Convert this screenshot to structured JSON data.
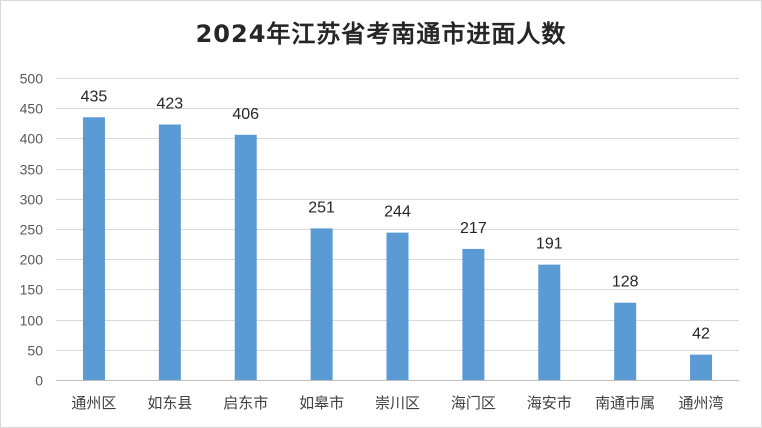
{
  "chart_data": {
    "type": "bar",
    "title": "2024年江苏省考南通市进面人数",
    "xlabel": "",
    "ylabel": "",
    "categories": [
      "通州区",
      "如东县",
      "启东市",
      "如皋市",
      "崇川区",
      "海门区",
      "海安市",
      "南通市属",
      "通州湾"
    ],
    "values": [
      435,
      423,
      406,
      251,
      244,
      217,
      191,
      128,
      42
    ],
    "ylim": [
      0,
      500
    ],
    "yticks": [
      0,
      50,
      100,
      150,
      200,
      250,
      300,
      350,
      400,
      450,
      500
    ],
    "grid": true,
    "legend": "none",
    "bar_color": "#5b9bd5"
  }
}
